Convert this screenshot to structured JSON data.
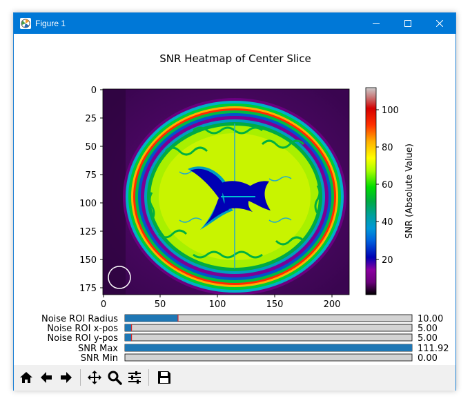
{
  "window": {
    "title": "Figure 1"
  },
  "figure": {
    "title": "SNR Heatmap of Center Slice",
    "colorbar": {
      "label": "SNR (Absolute Value)",
      "ticks": [
        "20",
        "40",
        "60",
        "80",
        "100"
      ]
    },
    "x_ticks": [
      "0",
      "50",
      "100",
      "150",
      "200"
    ],
    "y_ticks": [
      "0",
      "25",
      "50",
      "75",
      "100",
      "125",
      "150",
      "175"
    ]
  },
  "sliders": [
    {
      "label": "Noise ROI Radius",
      "value_text": "10.00",
      "fraction": 0.185
    },
    {
      "label": "Noise ROI x-pos",
      "value_text": "5.00",
      "fraction": 0.023
    },
    {
      "label": "Noise ROI y-pos",
      "value_text": "5.00",
      "fraction": 0.023
    },
    {
      "label": "SNR Max",
      "value_text": "111.92",
      "fraction": 1.0
    },
    {
      "label": "SNR Min",
      "value_text": "0.00",
      "fraction": 0.0
    }
  ],
  "toolbar": {
    "buttons": [
      "home-icon",
      "back-icon",
      "forward-icon",
      "pan-icon",
      "zoom-icon",
      "configure-subplots-icon",
      "save-icon"
    ]
  },
  "colors": {
    "titlebar": "#0078d7",
    "slider_fill": "#1f77b4",
    "slider_track": "#d3d3d3",
    "slider_marker": "#d62728"
  }
}
